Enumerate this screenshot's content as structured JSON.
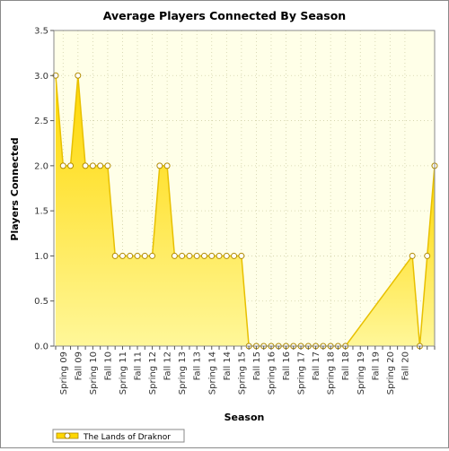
{
  "chart_data": {
    "type": "area",
    "title": "Average Players Connected By Season",
    "xlabel": "Season",
    "ylabel": "Players Connected",
    "ylim": [
      0,
      3.5
    ],
    "yticks": [
      "0.0",
      "0.5",
      "1.0",
      "1.5",
      "2.0",
      "2.5",
      "3.0",
      "3.5"
    ],
    "grid": true,
    "legend_position": "bottom-left",
    "colors": {
      "fill": "#ffd700",
      "fill_light": "#fff799",
      "line": "#e8c000",
      "plot_bg": "#ffffe8",
      "marker_fill": "#ffffff",
      "marker_stroke": "#b08a00"
    },
    "tick_labels": [
      "Spring 09",
      "Fall 09",
      "Spring 10",
      "Fall 10",
      "Spring 11",
      "Fall 11",
      "Spring 12",
      "Fall 12",
      "Spring 13",
      "Fall 13",
      "Spring 14",
      "Fall 14",
      "Spring 15",
      "Fall 15",
      "Spring 16",
      "Fall 16",
      "Spring 17",
      "Fall 17",
      "Spring 18",
      "Fall 18",
      "Spring 19",
      "Fall 19",
      "Spring 20",
      "Fall 20"
    ],
    "series": [
      {
        "name": "The Lands of Draknor",
        "values": [
          3,
          2,
          2,
          3,
          2,
          2,
          2,
          2,
          1,
          1,
          1,
          1,
          1,
          1,
          2,
          2,
          1,
          1,
          1,
          1,
          1,
          1,
          1,
          1,
          1,
          1,
          0,
          0,
          0,
          0,
          0,
          0,
          0,
          0,
          0,
          0,
          0,
          0,
          0,
          0,
          null,
          null,
          null,
          null,
          null,
          null,
          null,
          null,
          1,
          0,
          1,
          2
        ]
      }
    ]
  }
}
